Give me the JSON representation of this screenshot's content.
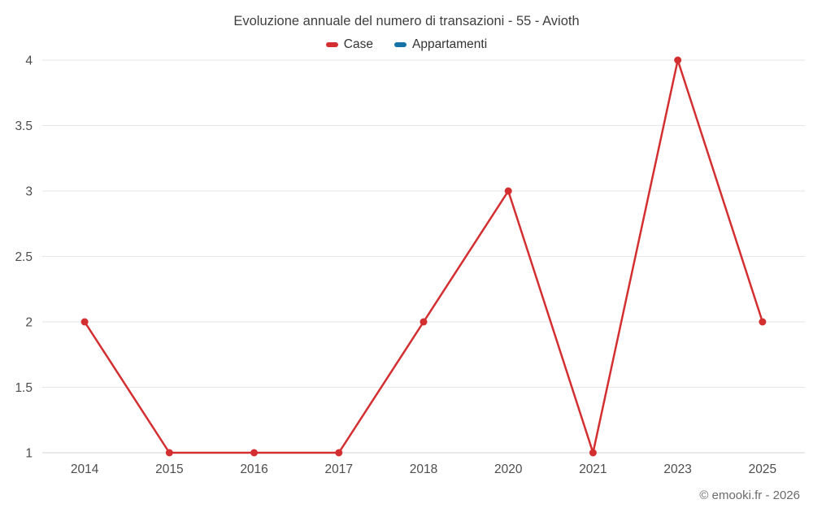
{
  "title": "Evoluzione annuale del numero di transazioni - 55 - Avioth",
  "legend": [
    {
      "label": "Case",
      "color": "#d32f31"
    },
    {
      "label": "Appartamenti",
      "color": "#1673a6"
    }
  ],
  "footer": "© emooki.fr - 2026",
  "colors": {
    "grid": "#e6e6e6",
    "axis": "#d4d4d4",
    "tick_text": "#4d4d4d"
  },
  "chart_data": {
    "type": "line",
    "title": "Evoluzione annuale del numero di transazioni - 55 - Avioth",
    "categories": [
      "2014",
      "2015",
      "2016",
      "2017",
      "2018",
      "2020",
      "2021",
      "2023",
      "2025"
    ],
    "series": [
      {
        "name": "Case",
        "color": "#d32f31",
        "values": [
          2,
          1,
          1,
          1,
          2,
          3,
          1,
          4,
          2
        ]
      },
      {
        "name": "Appartamenti",
        "color": "#1673a6",
        "values": []
      }
    ],
    "xlabel": "",
    "ylabel": "",
    "ylim": [
      1,
      4
    ],
    "yticks": [
      1,
      1.5,
      2,
      2.5,
      3,
      3.5,
      4
    ],
    "grid": true,
    "legend_position": "top"
  }
}
